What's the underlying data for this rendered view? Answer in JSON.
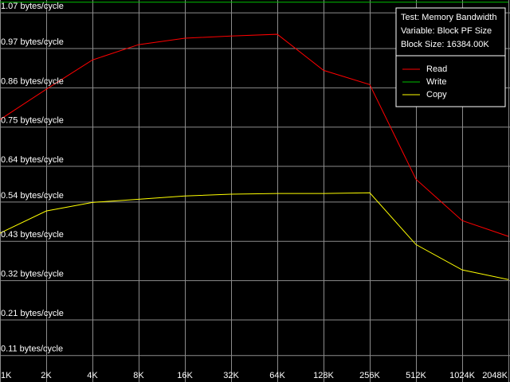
{
  "chart_data": {
    "type": "line",
    "categories": [
      "1K",
      "2K",
      "4K",
      "8K",
      "16K",
      "32K",
      "64K",
      "128K",
      "256K",
      "512K",
      "1024K",
      "2048K"
    ],
    "series": [
      {
        "name": "Read",
        "color": "#ff0000",
        "values": [
          0.771,
          0.856,
          0.938,
          0.981,
          0.999,
          1.005,
          1.01,
          0.909,
          0.869,
          0.604,
          0.488,
          0.444
        ]
      },
      {
        "name": "Write",
        "color": "#00c000",
        "values": [
          1.1,
          1.1,
          1.1,
          1.1,
          1.1,
          1.1,
          1.1,
          1.1,
          1.1,
          1.1,
          1.1,
          1.1
        ]
      },
      {
        "name": "Copy",
        "color": "#ffff00",
        "values": [
          0.453,
          0.515,
          0.539,
          0.548,
          0.557,
          0.562,
          0.564,
          0.564,
          0.566,
          0.421,
          0.35,
          0.323
        ]
      }
    ],
    "ylim": [
      0.036,
      1.106
    ],
    "yticks": [
      {
        "value": 1.07,
        "label": "1.07 bytes/cycle"
      },
      {
        "value": 0.97,
        "label": "0.97 bytes/cycle"
      },
      {
        "value": 0.86,
        "label": "0.86 bytes/cycle"
      },
      {
        "value": 0.75,
        "label": "0.75 bytes/cycle"
      },
      {
        "value": 0.64,
        "label": "0.64 bytes/cycle"
      },
      {
        "value": 0.54,
        "label": "0.54 bytes/cycle"
      },
      {
        "value": 0.43,
        "label": "0.43 bytes/cycle"
      },
      {
        "value": 0.32,
        "label": "0.32 bytes/cycle"
      },
      {
        "value": 0.21,
        "label": "0.21 bytes/cycle"
      },
      {
        "value": 0.11,
        "label": "0.11 bytes/cycle"
      }
    ],
    "annotations": [
      "Test: Memory Bandwidth",
      "Variable: Block PF Size",
      "Block Size: 16384.00K"
    ],
    "grid": true
  }
}
